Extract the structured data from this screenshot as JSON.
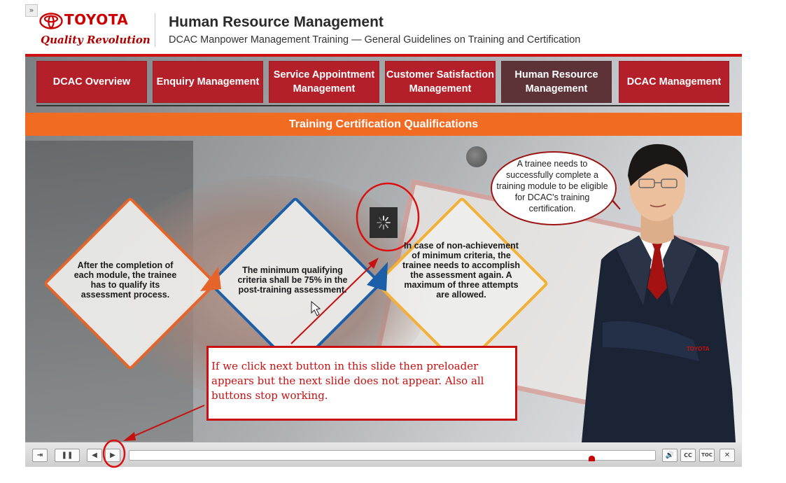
{
  "header": {
    "brand": "TOYOTA",
    "tagline": "Quality Revolution",
    "title": "Human Resource Management",
    "subtitle": "DCAC Manpower Management Training — General Guidelines on Training and Certification",
    "expand_glyph": "»"
  },
  "nav": {
    "tabs": [
      {
        "label": "DCAC Overview",
        "active": false
      },
      {
        "label": "Enquiry Management",
        "active": false
      },
      {
        "label": "Service Appointment Management",
        "active": false
      },
      {
        "label": "Customer Satisfaction Management",
        "active": false
      },
      {
        "label": "Human Resource Management",
        "active": true
      },
      {
        "label": "DCAC Management",
        "active": false
      }
    ]
  },
  "slide": {
    "banner": "Training Certification Qualifications",
    "steps": [
      {
        "text": "After the completion of each module, the trainee has to qualify its assessment process.",
        "color": "#e5642a"
      },
      {
        "text": "The minimum qualifying criteria shall be 75% in the post-training assessment.",
        "color": "#1a5fa8"
      },
      {
        "text": "In case of non-achievement of minimum criteria, the trainee needs to accomplish the assessment again. A maximum of three attempts are allowed.",
        "color": "#f2b136"
      }
    ],
    "speech_bubble": "A trainee needs to successfully complete a training module to be eligible for DCAC's training certification.",
    "badge_text": "TOYOTA"
  },
  "annotation": {
    "note": "If we click next button in this slide then preloader appears but the next slide does not appear. Also all buttons stop working.",
    "color": "#c81010"
  },
  "player": {
    "exit_icon": "⇥",
    "pause_icon": "❚❚",
    "prev_icon": "◀",
    "next_icon": "▶",
    "volume_icon": "🔊",
    "cc_label": "CC",
    "toc_label": "TOC",
    "close_icon": "✕",
    "progress": 0.88
  },
  "colors": {
    "brand_red": "#cc0000",
    "tab_red": "#b3202a",
    "tab_active": "#5d3338",
    "banner_orange": "#f26b22"
  }
}
